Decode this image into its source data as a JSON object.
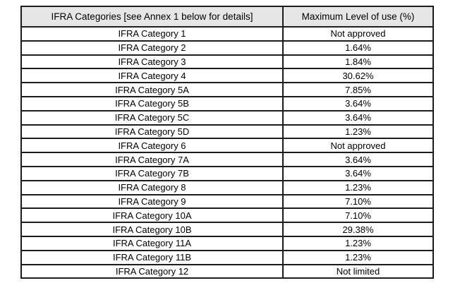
{
  "table": {
    "columns": [
      {
        "label": "IFRA Categories [see Annex 1 below for details]"
      },
      {
        "label": "Maximum Level of use (%)"
      }
    ],
    "rows": [
      {
        "category": "IFRA Category 1",
        "max_level": "Not approved"
      },
      {
        "category": "IFRA Category 2",
        "max_level": "1.64%"
      },
      {
        "category": "IFRA Category 3",
        "max_level": "1.84%"
      },
      {
        "category": "IFRA Category 4",
        "max_level": "30.62%"
      },
      {
        "category": "IFRA Category 5A",
        "max_level": "7.85%"
      },
      {
        "category": "IFRA Category 5B",
        "max_level": "3.64%"
      },
      {
        "category": "IFRA Category 5C",
        "max_level": "3.64%"
      },
      {
        "category": "IFRA Category 5D",
        "max_level": "1.23%"
      },
      {
        "category": "IFRA Category 6",
        "max_level": "Not approved"
      },
      {
        "category": "IFRA Category 7A",
        "max_level": "3.64%"
      },
      {
        "category": "IFRA Category 7B",
        "max_level": "3.64%"
      },
      {
        "category": "IFRA Category 8",
        "max_level": "1.23%"
      },
      {
        "category": "IFRA Category 9",
        "max_level": "7.10%"
      },
      {
        "category": "IFRA Category 10A",
        "max_level": "7.10%"
      },
      {
        "category": "IFRA Category 10B",
        "max_level": "29.38%"
      },
      {
        "category": "IFRA Category 11A",
        "max_level": "1.23%"
      },
      {
        "category": "IFRA Category 11B",
        "max_level": "1.23%"
      },
      {
        "category": "IFRA Category 12",
        "max_level": "Not limited"
      }
    ],
    "colors": {
      "header_background": "#e6e6e6",
      "border": "#1c1c1c",
      "text": "#000000",
      "page_background": "#ffffff"
    }
  }
}
